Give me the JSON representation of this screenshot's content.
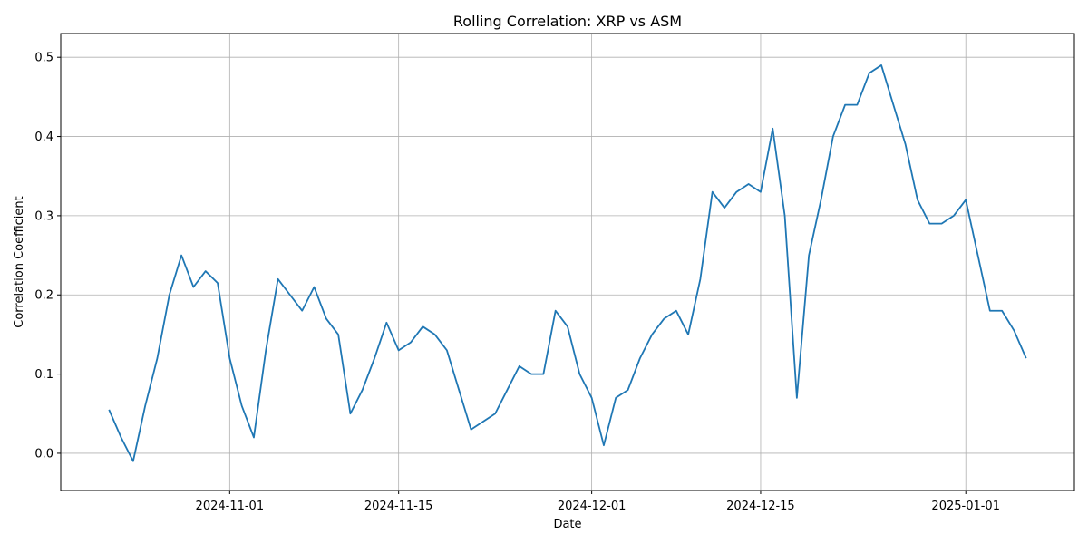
{
  "chart_data": {
    "type": "line",
    "title": "Rolling Correlation: XRP vs ASM",
    "xlabel": "Date",
    "ylabel": "Correlation Coefficient",
    "x": [
      "2024-10-22",
      "2024-10-23",
      "2024-10-24",
      "2024-10-25",
      "2024-10-26",
      "2024-10-27",
      "2024-10-28",
      "2024-10-29",
      "2024-10-30",
      "2024-10-31",
      "2024-11-01",
      "2024-11-02",
      "2024-11-03",
      "2024-11-04",
      "2024-11-05",
      "2024-11-06",
      "2024-11-07",
      "2024-11-08",
      "2024-11-09",
      "2024-11-10",
      "2024-11-11",
      "2024-11-12",
      "2024-11-13",
      "2024-11-14",
      "2024-11-15",
      "2024-11-16",
      "2024-11-17",
      "2024-11-18",
      "2024-11-19",
      "2024-11-20",
      "2024-11-21",
      "2024-11-22",
      "2024-11-23",
      "2024-11-24",
      "2024-11-25",
      "2024-11-26",
      "2024-11-27",
      "2024-11-28",
      "2024-11-29",
      "2024-11-30",
      "2024-12-01",
      "2024-12-02",
      "2024-12-03",
      "2024-12-04",
      "2024-12-05",
      "2024-12-06",
      "2024-12-07",
      "2024-12-08",
      "2024-12-09",
      "2024-12-10",
      "2024-12-11",
      "2024-12-12",
      "2024-12-13",
      "2024-12-14",
      "2024-12-15",
      "2024-12-16",
      "2024-12-17",
      "2024-12-18",
      "2024-12-19",
      "2024-12-20",
      "2024-12-21",
      "2024-12-22",
      "2024-12-23",
      "2024-12-24",
      "2024-12-25",
      "2024-12-26",
      "2024-12-27",
      "2024-12-28",
      "2024-12-29",
      "2024-12-30",
      "2024-12-31",
      "2025-01-01",
      "2025-01-02",
      "2025-01-03",
      "2025-01-04",
      "2025-01-05",
      "2025-01-06"
    ],
    "series": [
      {
        "name": "Rolling Correlation",
        "color": "#1f77b4",
        "values": [
          0.055,
          0.02,
          -0.01,
          0.06,
          0.12,
          0.2,
          0.25,
          0.21,
          0.23,
          0.215,
          0.12,
          0.06,
          0.02,
          0.13,
          0.22,
          0.2,
          0.18,
          0.21,
          0.17,
          0.15,
          0.05,
          0.08,
          0.12,
          0.165,
          0.13,
          0.14,
          0.16,
          0.15,
          0.13,
          0.08,
          0.03,
          0.04,
          0.05,
          0.08,
          0.11,
          0.1,
          0.1,
          0.18,
          0.16,
          0.1,
          0.07,
          0.01,
          0.07,
          0.08,
          0.12,
          0.15,
          0.17,
          0.18,
          0.15,
          0.22,
          0.33,
          0.31,
          0.33,
          0.34,
          0.33,
          0.41,
          0.3,
          0.07,
          0.25,
          0.32,
          0.4,
          0.44,
          0.44,
          0.48,
          0.49,
          0.44,
          0.39,
          0.32,
          0.29,
          0.29,
          0.3,
          0.32,
          0.25,
          0.18,
          0.18,
          0.155,
          0.12
        ]
      }
    ],
    "xlim": [
      "2024-10-18",
      "2025-01-10"
    ],
    "xticks": [
      "2024-11-01",
      "2024-11-15",
      "2024-12-01",
      "2024-12-15",
      "2025-01-01"
    ],
    "ylim": [
      -0.047,
      0.53
    ],
    "yticks": [
      {
        "value": 0,
        "label": "0.0"
      },
      0.1,
      0.2,
      0.3,
      0.4,
      0.5
    ],
    "grid": true
  }
}
